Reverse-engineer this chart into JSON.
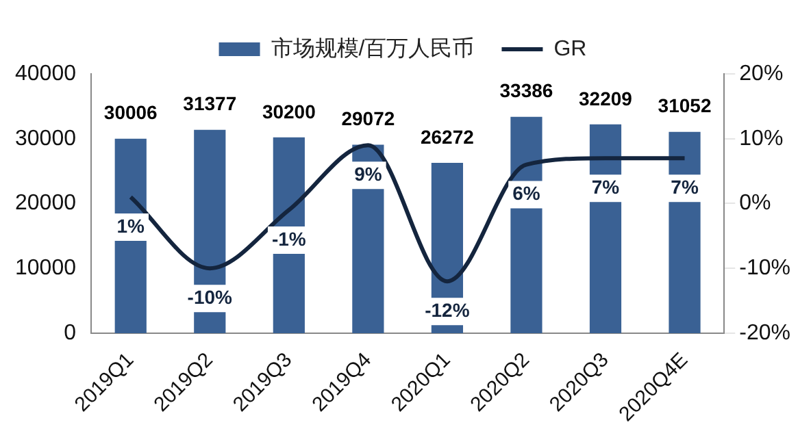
{
  "chart_data": {
    "type": "bar",
    "categories": [
      "2019Q1",
      "2019Q2",
      "2019Q3",
      "2019Q4",
      "2020Q1",
      "2020Q2",
      "2020Q3",
      "2020Q4E"
    ],
    "series": [
      {
        "name": "市场规模/百万人民币",
        "color": "#3a6194",
        "values": [
          30006,
          31377,
          30200,
          29072,
          26272,
          33386,
          32209,
          31052
        ],
        "value_labels": [
          "30006",
          "31377",
          "30200",
          "29072",
          "26272",
          "33386",
          "32209",
          "31052"
        ]
      },
      {
        "name": "GR",
        "type": "line",
        "axis": "y2",
        "color": "#14253e",
        "values": [
          1,
          -10,
          -1,
          9,
          -12,
          6,
          7,
          7
        ],
        "value_labels": [
          "1%",
          "-10%",
          "-1%",
          "9%",
          "-12%",
          "6%",
          "7%",
          "7%"
        ]
      }
    ],
    "ylim": [
      0,
      40000
    ],
    "yticks": [
      0,
      10000,
      20000,
      30000,
      40000
    ],
    "y2lim": [
      -20,
      20
    ],
    "y2ticks": [
      {
        "value": -20,
        "label": "-20%"
      },
      {
        "value": -10,
        "label": "-10%"
      },
      {
        "value": 0,
        "label": "0%"
      },
      {
        "value": 10,
        "label": "10%"
      },
      {
        "value": 20,
        "label": "20%"
      }
    ],
    "grid": false,
    "legend": "top",
    "marker": "none",
    "line_style": "solid"
  }
}
